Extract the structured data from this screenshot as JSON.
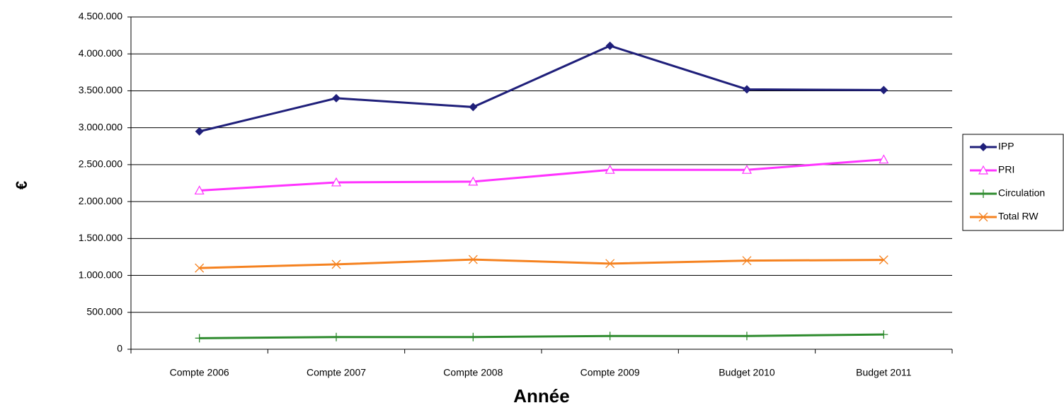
{
  "chart_data": {
    "type": "line",
    "x_label": "Année",
    "y_label": "€",
    "categories": [
      "Compte 2006",
      "Compte 2007",
      "Compte 2008",
      "Compte 2009",
      "Budget 2010",
      "Budget 2011"
    ],
    "series": [
      {
        "name": "IPP",
        "color": "#1f1f7a",
        "marker": "diamond",
        "values": [
          2950000,
          3400000,
          3280000,
          4110000,
          3520000,
          3510000
        ]
      },
      {
        "name": "PRI",
        "color": "#ff33ff",
        "marker": "triangle",
        "values": [
          2150000,
          2260000,
          2270000,
          2430000,
          2430000,
          2570000
        ]
      },
      {
        "name": "Circulation",
        "color": "#2e8b2e",
        "marker": "plus",
        "values": [
          150000,
          165000,
          165000,
          180000,
          180000,
          200000
        ]
      },
      {
        "name": "Total RW",
        "color": "#f58220",
        "marker": "x",
        "values": [
          1100000,
          1150000,
          1215000,
          1160000,
          1200000,
          1210000
        ]
      }
    ],
    "ylim": [
      0,
      4500000
    ],
    "yticks": [
      0,
      {
        "value": 500000,
        "label": "500.000"
      },
      {
        "value": 1000000,
        "label": "1.000.000"
      },
      {
        "value": 1500000,
        "label": "1.500.000"
      },
      {
        "value": 2000000,
        "label": "2.000.000"
      },
      {
        "value": 2500000,
        "label": "2.500.000"
      },
      {
        "value": 3000000,
        "label": "3.000.000"
      },
      {
        "value": 3500000,
        "label": "3.500.000"
      },
      {
        "value": 4000000,
        "label": "4.000.000"
      },
      {
        "value": 4500000,
        "label": "4.500.000"
      }
    ],
    "grid": true,
    "legend": "right"
  }
}
